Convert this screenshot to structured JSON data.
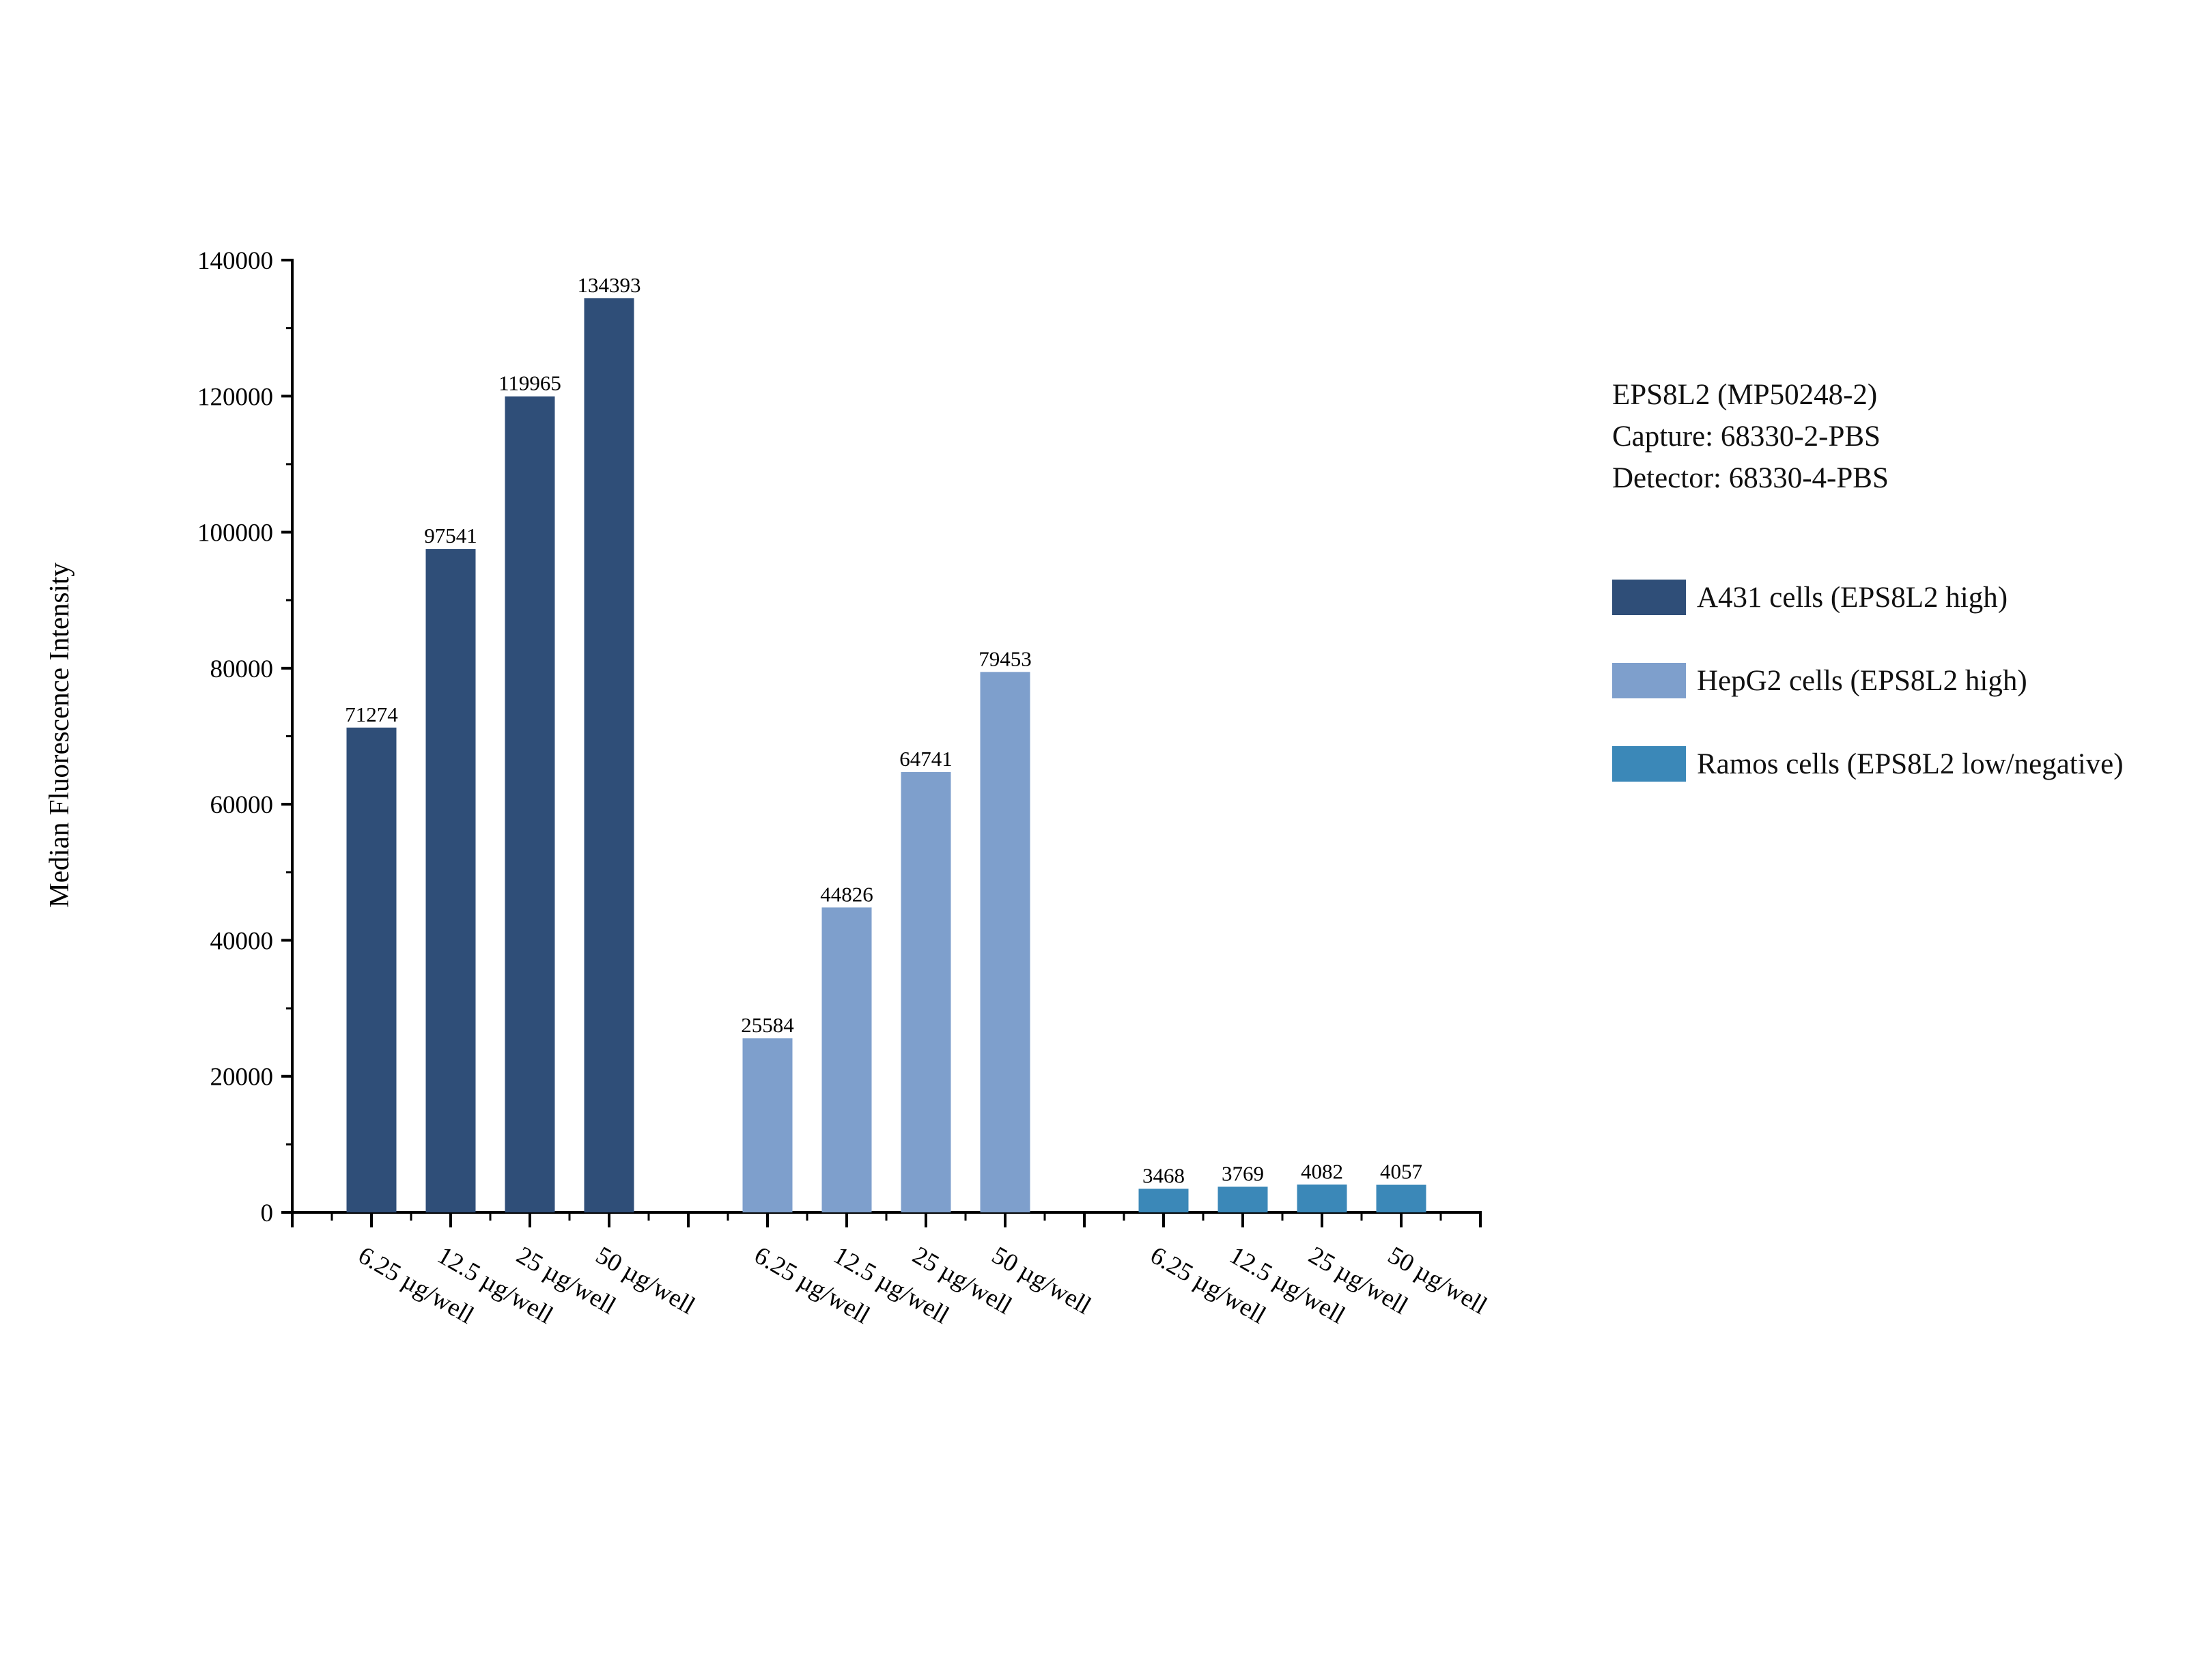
{
  "chart_data": {
    "type": "bar",
    "ylabel": "Median Fluorescence Intensity",
    "xlabel": "",
    "ylim": [
      0,
      140000
    ],
    "yticks": [
      "0",
      "20000",
      "40000",
      "60000",
      "80000",
      "100000",
      "120000",
      "140000"
    ],
    "categories": [
      "6.25 µg/well",
      "12.5 µg/well",
      "25 µg/well",
      "50 µg/well"
    ],
    "info": [
      "EPS8L2 (MP50248-2)",
      "Capture: 68330-2-PBS",
      "Detector: 68330-4-PBS"
    ],
    "legend_position": "right",
    "grid": false,
    "series": [
      {
        "name": "A431 cells (EPS8L2 high)",
        "color": "#2F4E78",
        "values": [
          71274,
          97541,
          119965,
          134393
        ]
      },
      {
        "name": "HepG2 cells (EPS8L2 high)",
        "color": "#7E9FCC",
        "values": [
          25584,
          44826,
          64741,
          79453
        ]
      },
      {
        "name": "Ramos cells (EPS8L2 low/negative)",
        "color": "#3B88B8",
        "values": [
          3468,
          3769,
          4082,
          4057
        ]
      }
    ]
  }
}
